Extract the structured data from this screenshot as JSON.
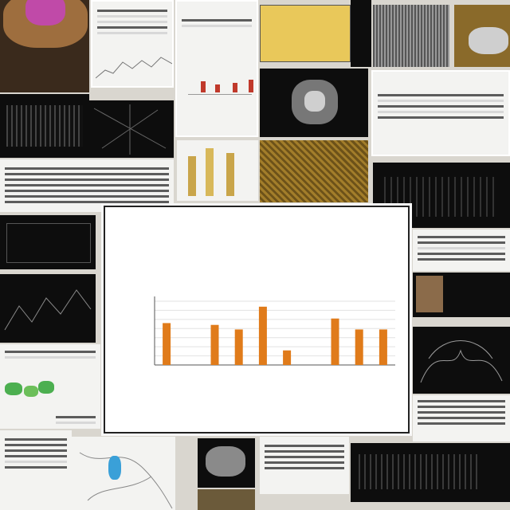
{
  "collage": {
    "panel": {
      "caption": "",
      "title_line1": "",
      "title_line2": "",
      "subtitle": "",
      "ylabel": "",
      "xlabel": ""
    }
  },
  "chart_data": {
    "type": "bar",
    "categories": [
      "",
      "",
      "",
      "",
      "",
      "",
      "",
      "",
      "",
      ""
    ],
    "values": [
      46,
      0,
      44,
      39,
      64,
      16,
      0,
      51,
      39,
      39
    ],
    "bar_color": "#e07b1a",
    "grid": true,
    "legend": "none"
  },
  "colors": {
    "accent": "#e07b1a",
    "tile_dark": "#0d0d0d",
    "tile_light": "#f3f3f1",
    "thumb_blue": "#3aa0d8",
    "thumb_green": "#4caf50",
    "thumb_pink": "#c05ab0",
    "thumb_gold": "#b8902c"
  }
}
